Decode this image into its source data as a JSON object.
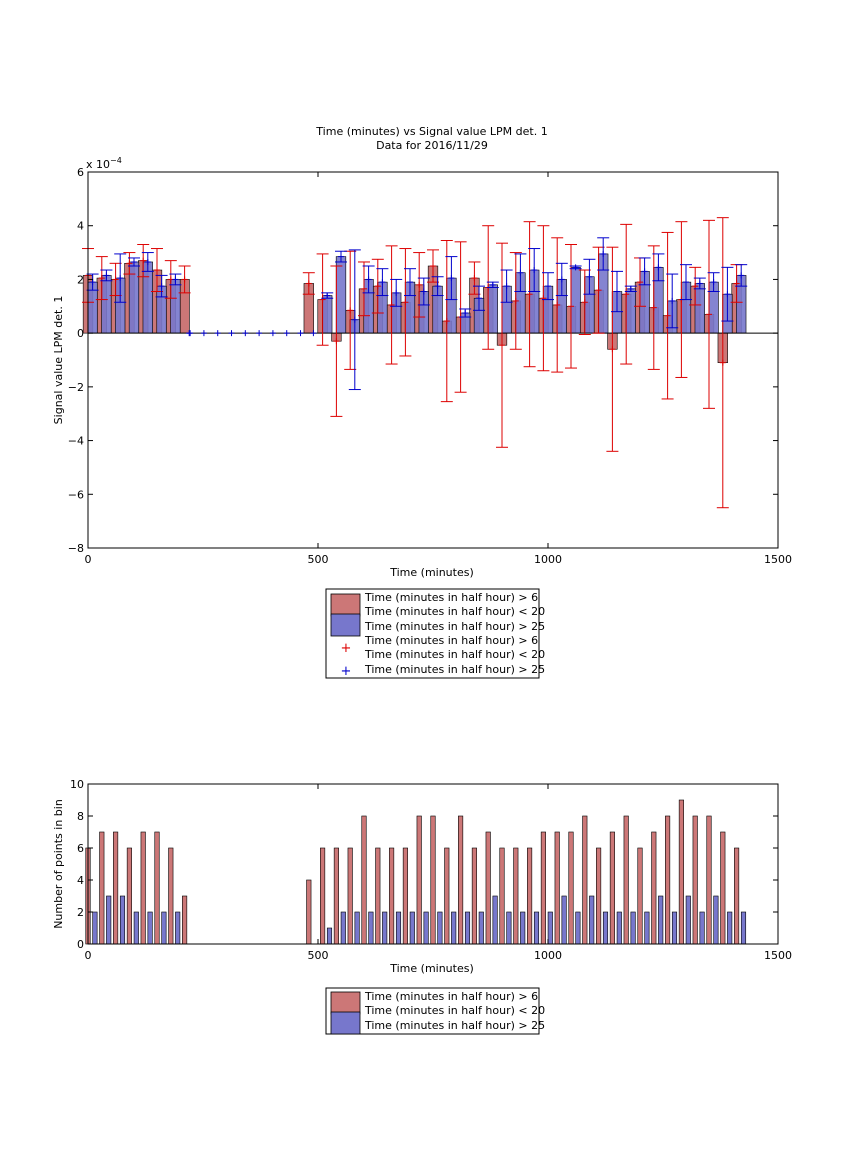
{
  "colors": {
    "red_bar": "#cc7777",
    "blue_bar": "#7777cc",
    "red_err": "#dd0000",
    "blue_err": "#0000cc",
    "axis": "#000000"
  },
  "chart_data": [
    {
      "type": "bar",
      "title": "Time (minutes) vs Signal value LPM det. 1",
      "subtitle": "Data for 2016/11/29",
      "xlabel": "Time (minutes)",
      "ylabel": "Signal value LPM det. 1",
      "exponent_label": "x 10",
      "exponent_power": "−4",
      "xlim": [
        0,
        1500
      ],
      "ylim": [
        -8,
        6
      ],
      "y_scale_note": "values in units of 1e-4",
      "xticks": [
        "0",
        "500",
        "1000",
        "1500"
      ],
      "yticks": [
        "−8",
        "−6",
        "−4",
        "−2",
        "0",
        "2",
        "4",
        "6"
      ],
      "legend": {
        "position": "below",
        "entries": [
          "Time (minutes in half hour) > 6",
          "Time (minutes in half hour) < 20",
          "Time (minutes in half hour) > 25",
          "Time (minutes in half hour) > 6",
          "Time (minutes in half hour) < 20",
          "Time (minutes in half hour) > 25"
        ]
      },
      "series": [
        {
          "group": "red",
          "x": [
            0,
            30,
            60,
            90,
            120,
            150,
            180,
            210,
            480,
            510,
            540,
            570,
            600,
            630,
            660,
            690,
            720,
            750,
            780,
            810,
            840,
            870,
            900,
            930,
            960,
            990,
            1020,
            1050,
            1080,
            1110,
            1140,
            1170,
            1200,
            1230,
            1260,
            1290,
            1320,
            1350,
            1380,
            1410
          ],
          "y": [
            2.15,
            2.05,
            2.0,
            2.6,
            2.7,
            2.35,
            2.0,
            2.0,
            1.85,
            1.25,
            -0.3,
            0.85,
            1.65,
            1.75,
            1.05,
            1.15,
            1.8,
            2.5,
            0.45,
            0.6,
            2.05,
            1.7,
            -0.45,
            1.2,
            1.45,
            1.3,
            1.05,
            1.0,
            1.15,
            1.6,
            -0.6,
            1.45,
            1.9,
            0.95,
            0.65,
            1.25,
            1.75,
            0.7,
            -1.1,
            1.85
          ],
          "err": [
            1.0,
            0.8,
            0.6,
            0.4,
            0.6,
            0.8,
            0.7,
            0.5,
            0.4,
            1.7,
            2.8,
            2.2,
            1.0,
            1.0,
            2.2,
            2.0,
            1.2,
            0.6,
            3.0,
            2.8,
            0.6,
            2.3,
            3.8,
            1.8,
            2.7,
            2.7,
            2.5,
            2.3,
            1.2,
            1.6,
            3.8,
            2.6,
            0.9,
            2.3,
            3.1,
            2.9,
            0.7,
            3.5,
            5.4,
            0.7
          ]
        },
        {
          "group": "blue",
          "x": [
            10,
            40,
            70,
            100,
            130,
            160,
            190,
            220,
            490,
            520,
            550,
            580,
            610,
            640,
            670,
            700,
            730,
            760,
            790,
            820,
            850,
            880,
            910,
            940,
            970,
            1000,
            1030,
            1060,
            1090,
            1120,
            1150,
            1180,
            1210,
            1240,
            1270,
            1300,
            1330,
            1360,
            1390,
            1420
          ],
          "y": [
            1.9,
            2.15,
            2.05,
            2.65,
            2.65,
            1.75,
            2.0,
            0.0,
            0.0,
            1.4,
            2.85,
            0.5,
            2.0,
            1.9,
            1.5,
            1.9,
            1.55,
            1.75,
            2.05,
            0.75,
            1.3,
            1.8,
            1.75,
            2.25,
            2.35,
            1.75,
            2.0,
            2.45,
            2.1,
            2.95,
            1.55,
            1.65,
            2.3,
            2.45,
            1.2,
            1.9,
            1.85,
            1.9,
            1.45,
            2.15
          ],
          "err": [
            0.3,
            0.2,
            0.9,
            0.15,
            0.35,
            0.4,
            0.2,
            0.0,
            0.0,
            0.1,
            0.2,
            2.6,
            0.5,
            0.5,
            0.5,
            0.5,
            0.5,
            0.35,
            0.8,
            0.15,
            0.45,
            0.1,
            0.6,
            0.7,
            0.8,
            0.5,
            0.6,
            0.05,
            0.65,
            0.6,
            0.75,
            0.1,
            0.5,
            0.5,
            1.0,
            0.65,
            0.2,
            0.35,
            1.0,
            0.4
          ]
        }
      ]
    },
    {
      "type": "bar",
      "xlabel": "Time (minutes)",
      "ylabel": "Number of points in bin",
      "xlim": [
        0,
        1500
      ],
      "ylim": [
        0,
        10
      ],
      "xticks": [
        "0",
        "500",
        "1000",
        "1500"
      ],
      "yticks": [
        "0",
        "2",
        "4",
        "6",
        "8",
        "10"
      ],
      "legend": {
        "position": "below",
        "entries": [
          "Time (minutes in half hour) > 6",
          "Time (minutes in half hour) < 20",
          "Time (minutes in half hour) > 25"
        ]
      },
      "series": [
        {
          "group": "red",
          "x": [
            0,
            30,
            60,
            90,
            120,
            150,
            180,
            210,
            480,
            510,
            540,
            570,
            600,
            630,
            660,
            690,
            720,
            750,
            780,
            810,
            840,
            870,
            900,
            930,
            960,
            990,
            1020,
            1050,
            1080,
            1110,
            1140,
            1170,
            1200,
            1230,
            1260,
            1290,
            1320,
            1350,
            1380,
            1410
          ],
          "values": [
            6,
            7,
            7,
            6,
            7,
            7,
            6,
            3,
            4,
            6,
            6,
            6,
            8,
            6,
            6,
            6,
            8,
            8,
            6,
            8,
            6,
            7,
            6,
            6,
            6,
            7,
            7,
            7,
            8,
            6,
            7,
            8,
            6,
            7,
            8,
            9,
            8,
            8,
            7,
            6
          ]
        },
        {
          "group": "blue",
          "x": [
            15,
            45,
            75,
            105,
            135,
            165,
            195,
            495,
            525,
            555,
            585,
            615,
            645,
            675,
            705,
            735,
            765,
            795,
            825,
            855,
            885,
            915,
            945,
            975,
            1005,
            1035,
            1065,
            1095,
            1125,
            1155,
            1185,
            1215,
            1245,
            1275,
            1305,
            1335,
            1365,
            1395,
            1425
          ],
          "values": [
            2,
            3,
            3,
            2,
            2,
            2,
            2,
            0,
            1,
            2,
            2,
            2,
            2,
            2,
            2,
            2,
            2,
            2,
            2,
            2,
            3,
            2,
            2,
            2,
            2,
            3,
            2,
            3,
            2,
            2,
            2,
            2,
            3,
            2,
            3,
            2,
            3,
            2,
            2
          ]
        }
      ]
    }
  ]
}
